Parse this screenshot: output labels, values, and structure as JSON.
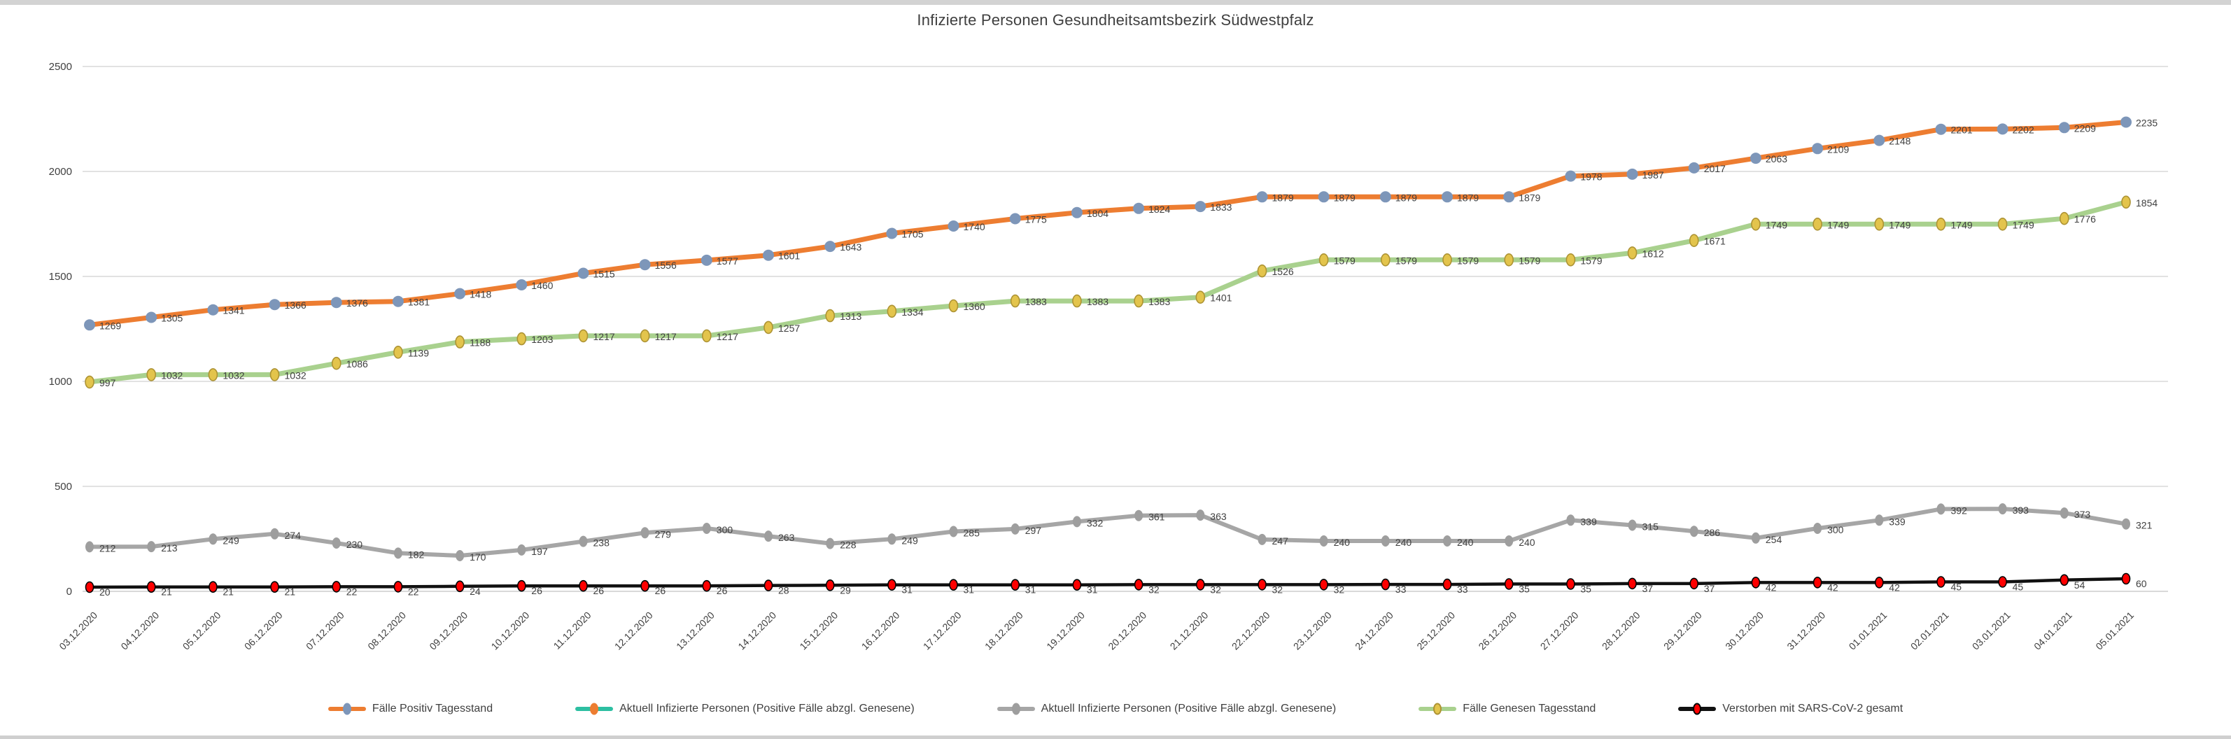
{
  "title": "Infizierte Personen Gesundheitsamtsbezirk Südwestpfalz",
  "colors": {
    "text": "#404040",
    "grid": "#d9d9d9",
    "background": "#ffffff",
    "chrome_strip": "#d3d3d3"
  },
  "chart_data": {
    "type": "line",
    "title": "Infizierte Personen Gesundheitsamtsbezirk Südwestpfalz",
    "xlabel": "",
    "ylabel": "",
    "ylim": [
      0,
      2500
    ],
    "grid": true,
    "legend_position": "bottom",
    "text_color": "#404040",
    "grid_color": "#d9d9d9",
    "y_axis": {
      "ticks": [
        "0",
        "500",
        "1000",
        "1500",
        "2000",
        "2500"
      ]
    },
    "categories": [
      "03.12.2020",
      "04.12.2020",
      "05.12.2020",
      "06.12.2020",
      "07.12.2020",
      "08.12.2020",
      "09.12.2020",
      "10.12.2020",
      "11.12.2020",
      "12.12.2020",
      "13.12.2020",
      "14.12.2020",
      "15.12.2020",
      "16.12.2020",
      "17.12.2020",
      "18.12.2020",
      "19.12.2020",
      "20.12.2020",
      "21.12.2020",
      "22.12.2020",
      "23.12.2020",
      "24.12.2020",
      "25.12.2020",
      "26.12.2020",
      "27.12.2020",
      "28.12.2020",
      "29.12.2020",
      "30.12.2020",
      "31.12.2020",
      "01.01.2021",
      "02.01.2021",
      "03.01.2021",
      "04.01.2021",
      "05.01.2021"
    ],
    "series": [
      {
        "id": "faelle-positiv-tagesstand",
        "name": "Fälle Positiv Tagesstand",
        "line_color": "#ed7d31",
        "marker_color": "#7d96b9",
        "marker_stroke": "",
        "line_width": 7,
        "marker_rx": 8,
        "marker_ry": 8,
        "label_dy": 6,
        "values": [
          1269,
          1305,
          1341,
          1366,
          1376,
          1381,
          1418,
          1460,
          1515,
          1556,
          1577,
          1601,
          1643,
          1705,
          1740,
          1775,
          1804,
          1824,
          1833,
          1879,
          1879,
          1879,
          1879,
          1879,
          1978,
          1987,
          2017,
          2063,
          2109,
          2148,
          2201,
          2202,
          2209,
          2235
        ]
      },
      {
        "id": "aktuell-infizierte-teal",
        "name": "Aktuell Infizierte Personen (Positive Fälle abzgl. Genesene)",
        "line_color": "#2dbfa2",
        "marker_color": "#ed7d31",
        "marker_stroke": "",
        "line_width": 6,
        "marker_rx": 7,
        "marker_ry": 8,
        "label_dy": 6,
        "values": []
      },
      {
        "id": "aktuell-infizierte-grau",
        "name": "Aktuell Infizierte Personen (Positive Fälle abzgl. Genesene)",
        "line_color": "#a6a6a6",
        "marker_color": "#9e9e9e",
        "marker_stroke": "",
        "line_width": 6,
        "marker_rx": 6,
        "marker_ry": 8,
        "label_dy": 7,
        "values": [
          212,
          213,
          249,
          274,
          230,
          182,
          170,
          197,
          238,
          279,
          300,
          263,
          228,
          249,
          285,
          297,
          332,
          361,
          363,
          247,
          240,
          240,
          240,
          240,
          339,
          315,
          286,
          254,
          300,
          339,
          392,
          393,
          373,
          321
        ]
      },
      {
        "id": "faelle-genesen-tagesstand",
        "name": "Fälle Genesen Tagesstand",
        "line_color": "#a9d18e",
        "marker_color": "#e3c44c",
        "marker_stroke": "#ad9334",
        "line_width": 7,
        "marker_rx": 6,
        "marker_ry": 8.5,
        "label_dy": 6,
        "values": [
          997,
          1032,
          1032,
          1032,
          1086,
          1139,
          1188,
          1203,
          1217,
          1217,
          1217,
          1257,
          1313,
          1334,
          1360,
          1383,
          1383,
          1383,
          1401,
          1526,
          1579,
          1579,
          1579,
          1579,
          1579,
          1612,
          1671,
          1749,
          1749,
          1749,
          1749,
          1749,
          1776,
          1854
        ]
      },
      {
        "id": "verstorben-sars-cov-2",
        "name": "Verstorben mit SARS-CoV-2 gesamt",
        "line_color": "#111111",
        "marker_color": "#ff0000",
        "marker_stroke": "#000000",
        "line_width": 4.5,
        "marker_rx": 5.5,
        "marker_ry": 7.5,
        "label_dy": 12,
        "values": [
          20,
          21,
          21,
          21,
          22,
          22,
          24,
          26,
          26,
          26,
          26,
          28,
          29,
          31,
          31,
          31,
          31,
          32,
          32,
          32,
          32,
          33,
          33,
          35,
          35,
          37,
          37,
          42,
          42,
          42,
          45,
          45,
          54,
          60
        ]
      }
    ]
  }
}
